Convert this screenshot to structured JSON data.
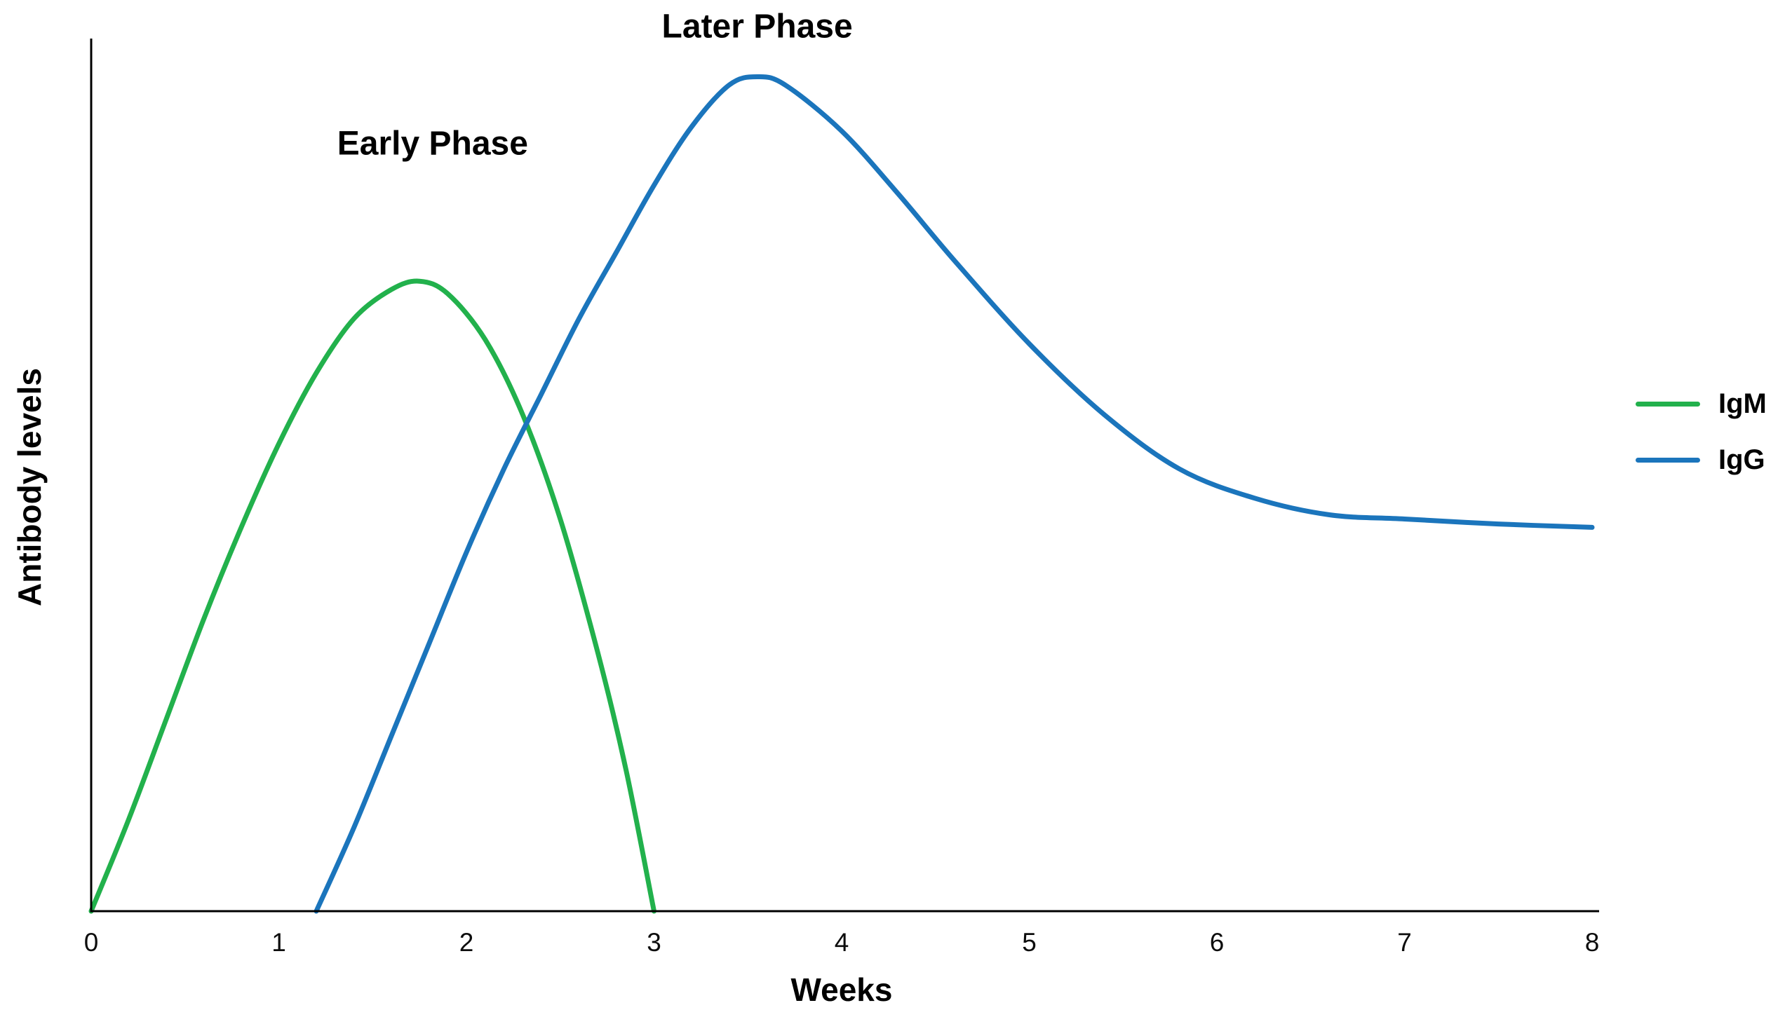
{
  "figure": {
    "background": "#ffffff",
    "axis_color": "#000000"
  },
  "chart_data": {
    "type": "line",
    "title": "",
    "xlabel": "Weeks",
    "ylabel": "Antibody levels",
    "x_ticks": [
      0,
      1,
      2,
      3,
      4,
      5,
      6,
      7,
      8
    ],
    "y_ticks": [],
    "xlim": [
      0,
      8
    ],
    "ylim": [
      0,
      105
    ],
    "grid": false,
    "legend_position": "right",
    "series": [
      {
        "name": "IgM",
        "color": "#22b14c",
        "x": [
          0,
          0.2,
          0.4,
          0.6,
          0.8,
          1.0,
          1.2,
          1.4,
          1.6,
          1.75,
          1.9,
          2.1,
          2.3,
          2.5,
          2.7,
          2.85,
          3.0
        ],
        "values": [
          0,
          11,
          23,
          35,
          46,
          56,
          64.5,
          71,
          74.5,
          75.5,
          74,
          68.5,
          59.5,
          47,
          31,
          17,
          0
        ]
      },
      {
        "name": "IgG",
        "color": "#1b75bc",
        "x": [
          1.2,
          1.4,
          1.6,
          1.8,
          2.0,
          2.2,
          2.4,
          2.6,
          2.8,
          3.0,
          3.2,
          3.4,
          3.55,
          3.7,
          4.0,
          4.3,
          4.6,
          5.0,
          5.4,
          5.8,
          6.2,
          6.6,
          7.0,
          7.5,
          8.0
        ],
        "values": [
          0,
          10,
          21,
          32,
          43,
          53,
          62,
          71,
          79,
          87,
          94,
          99,
          100,
          99,
          93.5,
          86,
          78,
          68,
          59.5,
          53,
          49.5,
          47.5,
          47,
          46.4,
          46
        ]
      }
    ],
    "annotations": [
      {
        "text": "Early Phase",
        "week": 1.82,
        "value": 92
      },
      {
        "text": "Later Phase",
        "week": 3.55,
        "value": 106
      }
    ]
  }
}
